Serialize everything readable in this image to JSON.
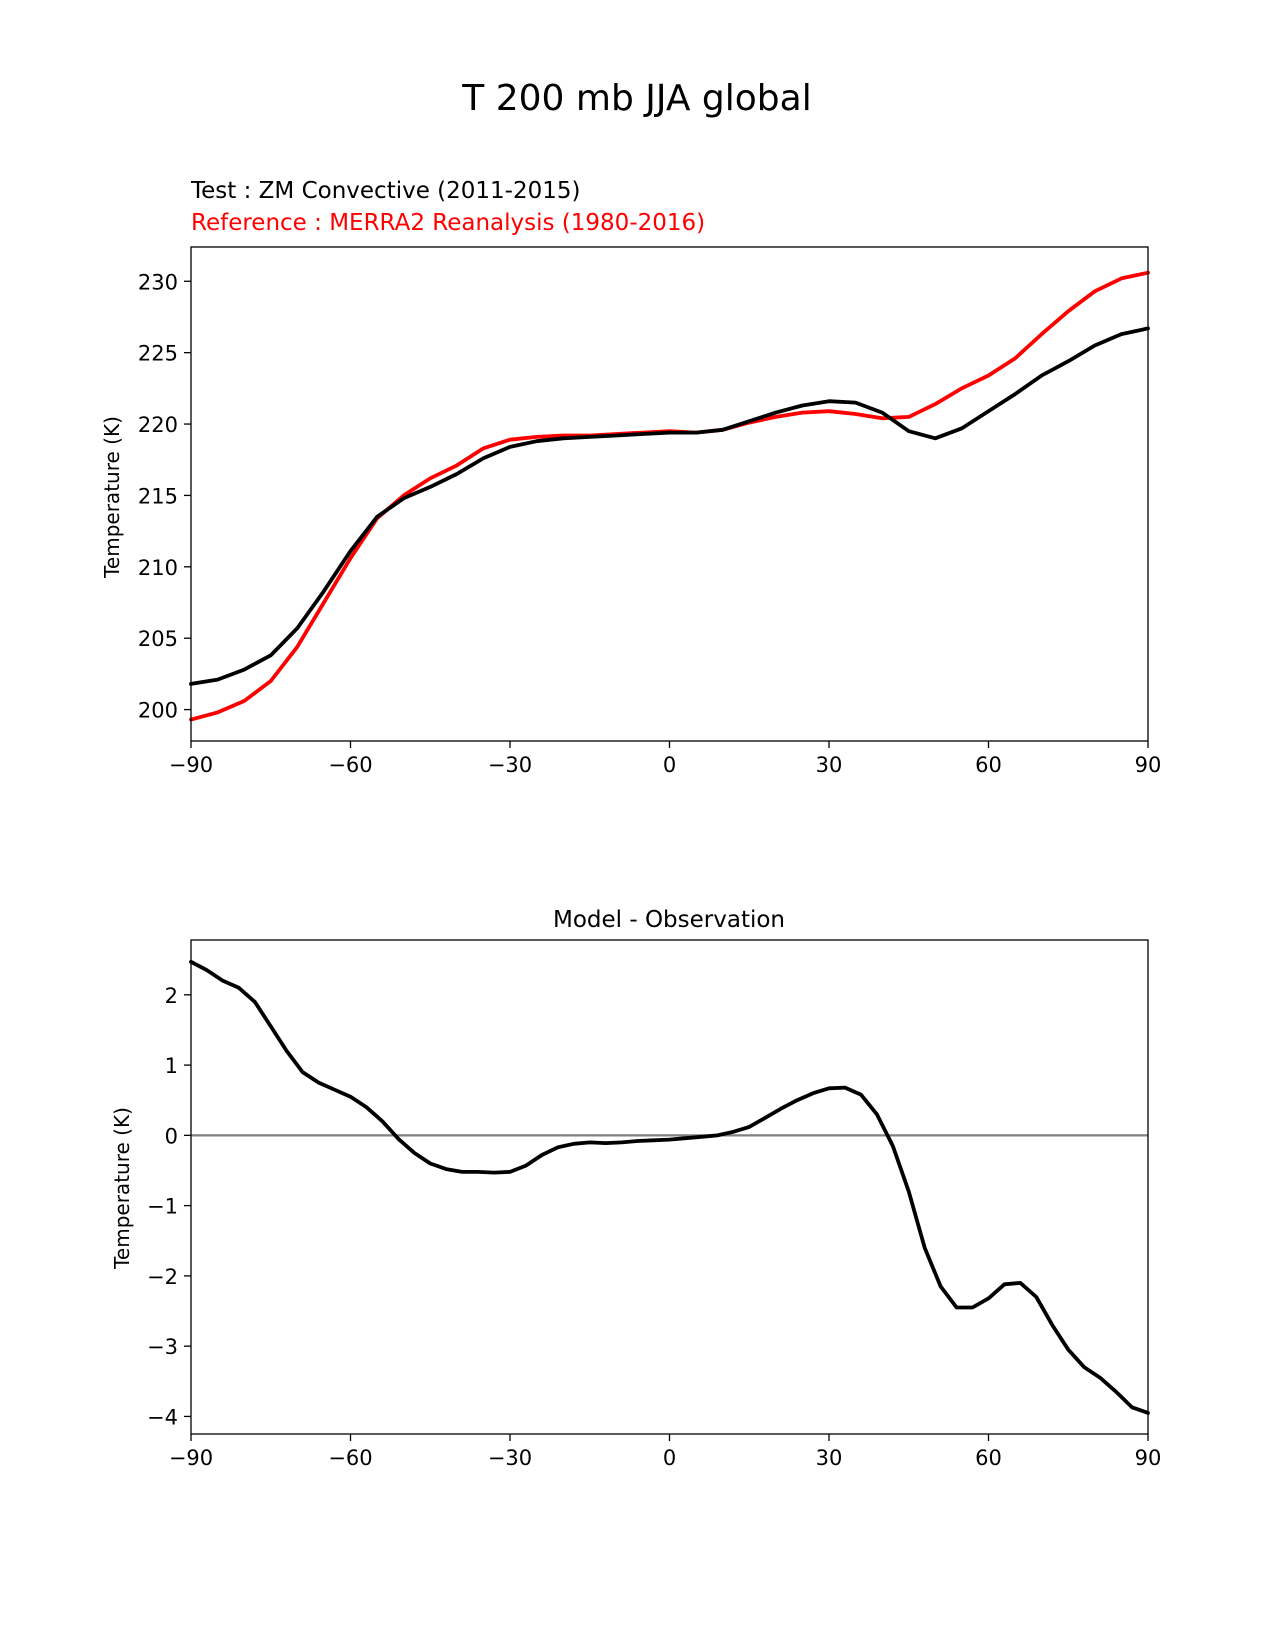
{
  "figure": {
    "suptitle": "T 200 mb JJA global",
    "colors": {
      "test": "#000000",
      "reference": "#ff0000",
      "zero_line": "#808080",
      "axes": "#000000"
    }
  },
  "chart_data": [
    {
      "type": "line",
      "test_label": "Test : ZM Convective (2011-2015)",
      "ref_label": "Reference : MERRA2 Reanalysis (1980-2016)",
      "xlabel": "",
      "ylabel": "Temperature (K)",
      "xlim": [
        -90,
        90
      ],
      "ylim": [
        197.8,
        232.4
      ],
      "xticks": [
        -90,
        -60,
        -30,
        0,
        30,
        60,
        90
      ],
      "xtick_labels": [
        "−90",
        "−60",
        "−30",
        "0",
        "30",
        "60",
        "90"
      ],
      "yticks": [
        200,
        205,
        210,
        215,
        220,
        225,
        230
      ],
      "ytick_labels": [
        "200",
        "205",
        "210",
        "215",
        "220",
        "225",
        "230"
      ],
      "x": [
        -90,
        -85,
        -80,
        -75,
        -70,
        -65,
        -60,
        -55,
        -50,
        -45,
        -40,
        -35,
        -30,
        -25,
        -20,
        -15,
        -10,
        -5,
        0,
        5,
        10,
        15,
        20,
        25,
        30,
        35,
        40,
        45,
        50,
        55,
        60,
        65,
        70,
        75,
        80,
        85,
        90
      ],
      "series": [
        {
          "name": "Test",
          "color": "#000000",
          "values": [
            201.8,
            202.1,
            202.8,
            203.8,
            205.7,
            208.3,
            211.1,
            213.5,
            214.8,
            215.6,
            216.5,
            217.6,
            218.4,
            218.8,
            219.0,
            219.1,
            219.2,
            219.3,
            219.4,
            219.4,
            219.6,
            220.2,
            220.8,
            221.3,
            221.6,
            221.5,
            220.8,
            219.5,
            219.0,
            219.7,
            220.9,
            222.1,
            223.4,
            224.4,
            225.5,
            226.3,
            226.7
          ]
        },
        {
          "name": "Reference",
          "color": "#ff0000",
          "values": [
            199.3,
            199.8,
            200.6,
            202.0,
            204.4,
            207.5,
            210.6,
            213.4,
            215.0,
            216.2,
            217.1,
            218.3,
            218.9,
            219.1,
            219.2,
            219.2,
            219.3,
            219.4,
            219.5,
            219.4,
            219.6,
            220.1,
            220.5,
            220.8,
            220.9,
            220.7,
            220.4,
            220.5,
            221.4,
            222.5,
            223.4,
            224.6,
            226.3,
            227.9,
            229.3,
            230.2,
            230.6
          ]
        }
      ]
    },
    {
      "type": "line",
      "title": "Model - Observation",
      "xlabel": "",
      "ylabel": "Temperature (K)",
      "xlim": [
        -90,
        90
      ],
      "ylim": [
        -4.25,
        2.78
      ],
      "xticks": [
        -90,
        -60,
        -30,
        0,
        30,
        60,
        90
      ],
      "xtick_labels": [
        "−90",
        "−60",
        "−30",
        "0",
        "30",
        "60",
        "90"
      ],
      "yticks": [
        -4,
        -3,
        -2,
        -1,
        0,
        1,
        2
      ],
      "ytick_labels": [
        "−4",
        "−3",
        "−2",
        "−1",
        "0",
        "1",
        "2"
      ],
      "zero_line": 0,
      "x": [
        -90,
        -87,
        -84,
        -81,
        -78,
        -75,
        -72,
        -69,
        -66,
        -63,
        -60,
        -57,
        -54,
        -51,
        -48,
        -45,
        -42,
        -39,
        -36,
        -33,
        -30,
        -27,
        -24,
        -21,
        -18,
        -15,
        -12,
        -9,
        -6,
        -3,
        0,
        3,
        6,
        9,
        12,
        15,
        18,
        21,
        24,
        27,
        30,
        33,
        36,
        39,
        42,
        45,
        48,
        51,
        54,
        57,
        60,
        63,
        66,
        69,
        72,
        75,
        78,
        81,
        84,
        87,
        90
      ],
      "series": [
        {
          "name": "Model - Observation",
          "color": "#000000",
          "values": [
            2.47,
            2.35,
            2.2,
            2.1,
            1.9,
            1.55,
            1.2,
            0.9,
            0.75,
            0.65,
            0.55,
            0.4,
            0.2,
            -0.05,
            -0.25,
            -0.4,
            -0.48,
            -0.52,
            -0.52,
            -0.53,
            -0.52,
            -0.43,
            -0.28,
            -0.17,
            -0.12,
            -0.1,
            -0.11,
            -0.1,
            -0.08,
            -0.07,
            -0.06,
            -0.04,
            -0.02,
            0.0,
            0.05,
            0.12,
            0.25,
            0.38,
            0.5,
            0.6,
            0.67,
            0.68,
            0.58,
            0.3,
            -0.15,
            -0.8,
            -1.6,
            -2.15,
            -2.45,
            -2.45,
            -2.32,
            -2.12,
            -2.1,
            -2.3,
            -2.7,
            -3.05,
            -3.3,
            -3.45,
            -3.65,
            -3.87,
            -3.95
          ]
        }
      ]
    }
  ]
}
